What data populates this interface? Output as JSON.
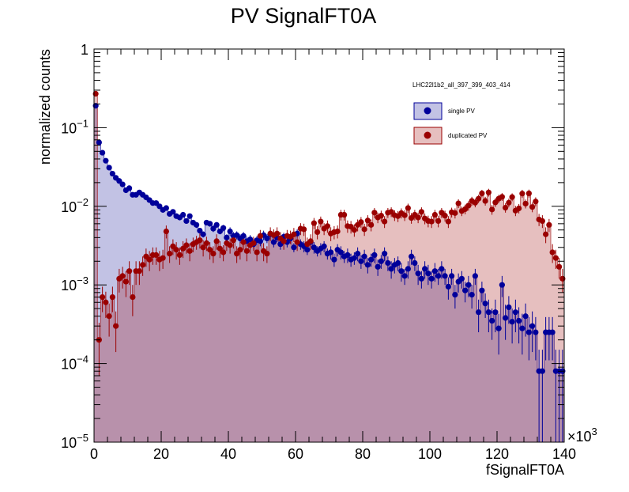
{
  "chart_data": {
    "type": "histogram",
    "title": "PV SignalFT0A",
    "xlabel": "fSignalFT0A",
    "ylabel": "normalized counts",
    "x_multiplier_label": "×10",
    "x_multiplier_exponent": "3",
    "xlim": [
      0,
      140000
    ],
    "ylim": [
      1e-05,
      1
    ],
    "y_scale": "log",
    "x_ticks": [
      "0",
      "20",
      "40",
      "60",
      "80",
      "100",
      "120",
      "140"
    ],
    "y_ticks": [
      {
        "base": "10",
        "exp": "−5"
      },
      {
        "base": "10",
        "exp": "−4"
      },
      {
        "base": "10",
        "exp": "−3"
      },
      {
        "base": "10",
        "exp": "−2"
      },
      {
        "base": "10",
        "exp": "−1"
      },
      {
        "base": "1",
        "exp": ""
      }
    ],
    "legend_header": "LHC22l1b2_all_397_399_403_414",
    "legend_position": "top-right",
    "grid": false,
    "bin_width": 1000,
    "series": [
      {
        "name": "single PV",
        "marker_color": "#00009a",
        "fill_color": "#c2c2e4",
        "fill_opacity": 1.0,
        "x": [
          500,
          1500,
          2500,
          3500,
          4500,
          5500,
          6500,
          7500,
          8500,
          9500,
          10500,
          11500,
          12500,
          13500,
          14500,
          15500,
          16500,
          17500,
          18500,
          19500,
          20500,
          21500,
          22500,
          23500,
          24500,
          25500,
          26500,
          27500,
          28500,
          29500,
          30500,
          31500,
          32500,
          33500,
          34500,
          35500,
          36500,
          37500,
          38500,
          39500,
          40500,
          41500,
          42500,
          43500,
          44500,
          45500,
          46500,
          47500,
          48500,
          49500,
          50500,
          51500,
          52500,
          53500,
          54500,
          55500,
          56500,
          57500,
          58500,
          59500,
          60500,
          61500,
          62500,
          63500,
          64500,
          65500,
          66500,
          67500,
          68500,
          69500,
          70500,
          71500,
          72500,
          73500,
          74500,
          75500,
          76500,
          77500,
          78500,
          79500,
          80500,
          81500,
          82500,
          83500,
          84500,
          85500,
          86500,
          87500,
          88500,
          89500,
          90500,
          91500,
          92500,
          93500,
          94500,
          95500,
          96500,
          97500,
          98500,
          99500,
          100500,
          101500,
          102500,
          103500,
          104500,
          105500,
          106500,
          107500,
          108500,
          109500,
          110500,
          111500,
          112500,
          113500,
          114500,
          115500,
          116500,
          117500,
          118500,
          119500,
          120500,
          121500,
          122500,
          123500,
          124500,
          125500,
          126500,
          127500,
          128500,
          129500,
          130500,
          131500,
          132500,
          133500,
          134500,
          135500,
          136500,
          137500,
          138500,
          139500
        ],
        "y": [
          0.19,
          0.065,
          0.048,
          0.038,
          0.031,
          0.026,
          0.023,
          0.021,
          0.019,
          0.016,
          0.017,
          0.014,
          0.014,
          0.015,
          0.014,
          0.013,
          0.012,
          0.011,
          0.011,
          0.01,
          0.009,
          0.0095,
          0.008,
          0.0085,
          0.0075,
          0.0072,
          0.0078,
          0.0065,
          0.0075,
          0.0062,
          0.0058,
          0.0049,
          0.0044,
          0.0062,
          0.006,
          0.0052,
          0.0058,
          0.0048,
          0.0053,
          0.004,
          0.0048,
          0.0042,
          0.0043,
          0.0039,
          0.0042,
          0.0036,
          0.0038,
          0.0033,
          0.0037,
          0.0036,
          0.0043,
          0.0039,
          0.0044,
          0.0035,
          0.004,
          0.0033,
          0.0041,
          0.0035,
          0.0039,
          0.003,
          0.0045,
          0.0033,
          0.0031,
          0.0028,
          0.0035,
          0.003,
          0.0027,
          0.0029,
          0.0031,
          0.0025,
          0.0026,
          0.0021,
          0.0028,
          0.0026,
          0.0023,
          0.0024,
          0.0021,
          0.0022,
          0.0025,
          0.002,
          0.0023,
          0.0018,
          0.0021,
          0.0024,
          0.0017,
          0.002,
          0.0025,
          0.0019,
          0.0016,
          0.0018,
          0.0019,
          0.0015,
          0.0013,
          0.0016,
          0.0023,
          0.0019,
          0.0014,
          0.0012,
          0.0016,
          0.0014,
          0.0012,
          0.0015,
          0.0013,
          0.0016,
          0.0013,
          0.00095,
          0.0013,
          0.00075,
          0.0011,
          0.0012,
          0.00085,
          0.001,
          0.00075,
          0.0013,
          0.00045,
          0.00085,
          0.00058,
          0.00045,
          0.00035,
          0.00045,
          0.00028,
          0.001,
          0.00038,
          0.00052,
          0.00034,
          0.00045,
          0.00035,
          0.00028,
          0.0004,
          0.00025,
          0.0003,
          0.00025,
          8e-05,
          8e-05,
          0.00025,
          0.00025,
          0.00025,
          8e-05,
          8e-05,
          8e-05
        ],
        "y_err": [
          0.001,
          0.0006,
          0.0005,
          0.0004,
          0.0004,
          0.0003,
          0.0003,
          0.0003,
          0.0003,
          0.0003,
          0.0003,
          0.0002,
          0.0002,
          0.0002,
          0.0002,
          0.0002,
          0.0002,
          0.0002,
          0.0002,
          0.0002,
          0.0002,
          0.0002,
          0.0002,
          0.0002,
          0.0002,
          0.0002,
          0.0002,
          0.0002,
          0.0002,
          0.0002,
          0.0005,
          0.0004,
          0.0004,
          0.0005,
          0.0005,
          0.0005,
          0.0005,
          0.0004,
          0.0005,
          0.0004,
          0.0006,
          0.0005,
          0.0005,
          0.0005,
          0.0005,
          0.0005,
          0.0005,
          0.0004,
          0.0005,
          0.0005,
          0.0006,
          0.0005,
          0.0006,
          0.0005,
          0.0005,
          0.0005,
          0.0005,
          0.0005,
          0.0005,
          0.0004,
          0.0006,
          0.0005,
          0.0005,
          0.0004,
          0.0005,
          0.0005,
          0.0004,
          0.0005,
          0.0005,
          0.0004,
          0.0005,
          0.0004,
          0.0005,
          0.0005,
          0.0004,
          0.0005,
          0.0004,
          0.0004,
          0.0005,
          0.0004,
          0.0005,
          0.0004,
          0.0004,
          0.0005,
          0.0004,
          0.0004,
          0.0005,
          0.0004,
          0.0004,
          0.0004,
          0.0004,
          0.0004,
          0.0003,
          0.0004,
          0.0005,
          0.0004,
          0.0004,
          0.0003,
          0.0004,
          0.0004,
          0.0003,
          0.0004,
          0.0003,
          0.0004,
          0.0003,
          0.0003,
          0.0003,
          0.00025,
          0.0003,
          0.0003,
          0.00025,
          0.0003,
          0.00025,
          0.0003,
          0.0002,
          0.00025,
          0.0002,
          0.0002,
          0.00015,
          0.0002,
          0.00015,
          0.0003,
          0.00018,
          0.0002,
          0.00016,
          0.0002,
          0.00017,
          0.00015,
          0.00018,
          0.00014,
          0.00016,
          0.00014,
          7e-05,
          7e-05,
          0.00014,
          0.00014,
          0.00014,
          7e-05,
          7e-05,
          7e-05
        ]
      },
      {
        "name": "duplicated PV",
        "marker_color": "#9a0000",
        "fill_color": "#9a0000",
        "fill_opacity": 0.25,
        "x": [
          500,
          1500,
          2500,
          3500,
          4500,
          5500,
          6500,
          7500,
          8500,
          9500,
          10500,
          11500,
          12500,
          13500,
          14500,
          15500,
          16500,
          17500,
          18500,
          19500,
          20500,
          21500,
          22500,
          23500,
          24500,
          25500,
          26500,
          27500,
          28500,
          29500,
          30500,
          31500,
          32500,
          33500,
          34500,
          35500,
          36500,
          37500,
          38500,
          39500,
          40500,
          41500,
          42500,
          43500,
          44500,
          45500,
          46500,
          47500,
          48500,
          49500,
          50500,
          51500,
          52500,
          53500,
          54500,
          55500,
          56500,
          57500,
          58500,
          59500,
          60500,
          61500,
          62500,
          63500,
          64500,
          65500,
          66500,
          67500,
          68500,
          69500,
          70500,
          71500,
          72500,
          73500,
          74500,
          75500,
          76500,
          77500,
          78500,
          79500,
          80500,
          81500,
          82500,
          83500,
          84500,
          85500,
          86500,
          87500,
          88500,
          89500,
          90500,
          91500,
          92500,
          93500,
          94500,
          95500,
          96500,
          97500,
          98500,
          99500,
          100500,
          101500,
          102500,
          103500,
          104500,
          105500,
          106500,
          107500,
          108500,
          109500,
          110500,
          111500,
          112500,
          113500,
          114500,
          115500,
          116500,
          117500,
          118500,
          119500,
          120500,
          121500,
          122500,
          123500,
          124500,
          125500,
          126500,
          127500,
          128500,
          129500,
          130500,
          131500,
          132500,
          133500,
          134500,
          135500,
          136500,
          137500,
          138500,
          139500
        ],
        "y": [
          0.27,
          0.0002,
          0.0007,
          0.0006,
          0.0004,
          0.0007,
          0.0003,
          0.0012,
          0.0013,
          0.0011,
          0.0015,
          0.0007,
          0.0015,
          0.0015,
          0.0018,
          0.0023,
          0.0021,
          0.0024,
          0.0024,
          0.0021,
          0.0022,
          0.0048,
          0.0025,
          0.0031,
          0.0028,
          0.0024,
          0.0029,
          0.0032,
          0.0027,
          0.0033,
          0.0035,
          0.0037,
          0.003,
          0.0034,
          0.0028,
          0.0025,
          0.0036,
          0.0029,
          0.0026,
          0.0034,
          0.0032,
          0.0037,
          0.0025,
          0.0028,
          0.0035,
          0.0027,
          0.0032,
          0.0034,
          0.0026,
          0.0042,
          0.0027,
          0.0025,
          0.0045,
          0.0043,
          0.0045,
          0.0039,
          0.0036,
          0.0042,
          0.0041,
          0.0044,
          0.0035,
          0.0052,
          0.0051,
          0.0033,
          0.0036,
          0.0061,
          0.0047,
          0.0064,
          0.0052,
          0.0056,
          0.0045,
          0.0047,
          0.0048,
          0.0078,
          0.0078,
          0.0056,
          0.0055,
          0.005,
          0.0058,
          0.0063,
          0.0051,
          0.0066,
          0.0058,
          0.0083,
          0.0072,
          0.0076,
          0.0064,
          0.0083,
          0.0085,
          0.0077,
          0.0075,
          0.0082,
          0.0077,
          0.0095,
          0.0071,
          0.0078,
          0.0072,
          0.0085,
          0.007,
          0.0065,
          0.0064,
          0.0078,
          0.0065,
          0.0083,
          0.0076,
          0.0064,
          0.0084,
          0.0082,
          0.0109,
          0.0087,
          0.0092,
          0.0102,
          0.0117,
          0.0111,
          0.0125,
          0.0146,
          0.0117,
          0.015,
          0.0091,
          0.0112,
          0.0125,
          0.0132,
          0.0096,
          0.0111,
          0.0131,
          0.0088,
          0.0094,
          0.0145,
          0.0108,
          0.0146,
          0.0098,
          0.0115,
          0.0068,
          0.0065,
          0.0044,
          0.0058,
          0.0026,
          0.0022,
          0.0017,
          0.0012
        ],
        "y_err": [
          0.002,
          0.00013,
          0.00025,
          0.00022,
          0.00018,
          0.00025,
          0.00016,
          0.0004,
          0.0004,
          0.0004,
          0.0005,
          0.0003,
          0.0005,
          0.0005,
          0.0005,
          0.0006,
          0.0006,
          0.0006,
          0.0006,
          0.0006,
          0.0006,
          0.0009,
          0.0006,
          0.0007,
          0.0007,
          0.0006,
          0.0007,
          0.0007,
          0.0007,
          0.0007,
          0.0007,
          0.0008,
          0.0007,
          0.0007,
          0.0007,
          0.0006,
          0.0008,
          0.0007,
          0.0006,
          0.0007,
          0.0007,
          0.0008,
          0.0006,
          0.0007,
          0.0007,
          0.0007,
          0.0007,
          0.0007,
          0.0006,
          0.0008,
          0.0007,
          0.0006,
          0.0009,
          0.0008,
          0.0009,
          0.0008,
          0.0008,
          0.0008,
          0.0008,
          0.0009,
          0.0008,
          0.0009,
          0.0009,
          0.0007,
          0.0008,
          0.001,
          0.0009,
          0.001,
          0.0009,
          0.001,
          0.0009,
          0.0009,
          0.0009,
          0.0012,
          0.0012,
          0.001,
          0.001,
          0.0009,
          0.001,
          0.001,
          0.0009,
          0.0011,
          0.001,
          0.0012,
          0.0011,
          0.0012,
          0.0011,
          0.0012,
          0.0012,
          0.0012,
          0.0012,
          0.0012,
          0.0012,
          0.0013,
          0.0011,
          0.0012,
          0.0011,
          0.0012,
          0.0011,
          0.0011,
          0.0011,
          0.0012,
          0.0011,
          0.0012,
          0.0012,
          0.0011,
          0.0012,
          0.0012,
          0.0014,
          0.0012,
          0.0013,
          0.0014,
          0.0015,
          0.0014,
          0.0015,
          0.0016,
          0.0015,
          0.0017,
          0.0013,
          0.0014,
          0.0015,
          0.0015,
          0.0013,
          0.0014,
          0.0015,
          0.0013,
          0.0013,
          0.0017,
          0.0014,
          0.0017,
          0.0014,
          0.0015,
          0.0012,
          0.0012,
          0.001,
          0.0011,
          0.0007,
          0.0006,
          0.0005,
          0.0004
        ]
      }
    ]
  }
}
